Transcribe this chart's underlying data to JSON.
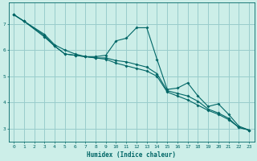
{
  "xlabel": "Humidex (Indice chaleur)",
  "xlim": [
    -0.5,
    23.5
  ],
  "ylim": [
    2.5,
    7.8
  ],
  "yticks": [
    3,
    4,
    5,
    6,
    7
  ],
  "xticks": [
    0,
    1,
    2,
    3,
    4,
    5,
    6,
    7,
    8,
    9,
    10,
    11,
    12,
    13,
    14,
    15,
    16,
    17,
    18,
    19,
    20,
    21,
    22,
    23
  ],
  "background_color": "#cceee8",
  "grid_color": "#99cccc",
  "line_color": "#006666",
  "lines": [
    {
      "pts": [
        [
          0,
          7.35
        ],
        [
          1,
          7.1
        ],
        [
          3,
          6.6
        ],
        [
          4,
          6.2
        ],
        [
          5,
          6.0
        ],
        [
          6,
          5.85
        ],
        [
          7,
          5.75
        ],
        [
          8,
          5.75
        ],
        [
          9,
          5.8
        ],
        [
          10,
          6.35
        ],
        [
          11,
          6.45
        ],
        [
          12,
          6.85
        ],
        [
          13,
          6.85
        ],
        [
          14,
          5.65
        ],
        [
          15,
          4.5
        ],
        [
          16,
          4.55
        ],
        [
          17,
          4.75
        ],
        [
          18,
          4.25
        ],
        [
          19,
          3.85
        ],
        [
          20,
          3.95
        ],
        [
          21,
          3.55
        ],
        [
          22,
          3.1
        ],
        [
          23,
          2.95
        ]
      ]
    },
    {
      "pts": [
        [
          0,
          7.35
        ],
        [
          1,
          7.1
        ],
        [
          3,
          6.55
        ],
        [
          4,
          6.15
        ],
        [
          5,
          5.85
        ],
        [
          6,
          5.8
        ],
        [
          7,
          5.75
        ],
        [
          8,
          5.7
        ],
        [
          9,
          5.7
        ],
        [
          10,
          5.6
        ],
        [
          11,
          5.55
        ],
        [
          12,
          5.45
        ],
        [
          13,
          5.35
        ],
        [
          14,
          5.1
        ],
        [
          15,
          4.45
        ],
        [
          16,
          4.35
        ],
        [
          17,
          4.25
        ],
        [
          18,
          4.05
        ],
        [
          19,
          3.75
        ],
        [
          20,
          3.6
        ],
        [
          21,
          3.4
        ],
        [
          22,
          3.05
        ],
        [
          23,
          2.95
        ]
      ]
    },
    {
      "pts": [
        [
          0,
          7.35
        ],
        [
          1,
          7.1
        ],
        [
          3,
          6.5
        ],
        [
          4,
          6.15
        ],
        [
          5,
          5.85
        ],
        [
          6,
          5.8
        ],
        [
          7,
          5.75
        ],
        [
          8,
          5.7
        ],
        [
          9,
          5.65
        ],
        [
          10,
          5.5
        ],
        [
          11,
          5.4
        ],
        [
          12,
          5.3
        ],
        [
          13,
          5.2
        ],
        [
          14,
          5.0
        ],
        [
          15,
          4.4
        ],
        [
          16,
          4.25
        ],
        [
          17,
          4.1
        ],
        [
          18,
          3.9
        ],
        [
          19,
          3.7
        ],
        [
          20,
          3.55
        ],
        [
          21,
          3.35
        ],
        [
          22,
          3.05
        ],
        [
          23,
          2.95
        ]
      ]
    }
  ]
}
